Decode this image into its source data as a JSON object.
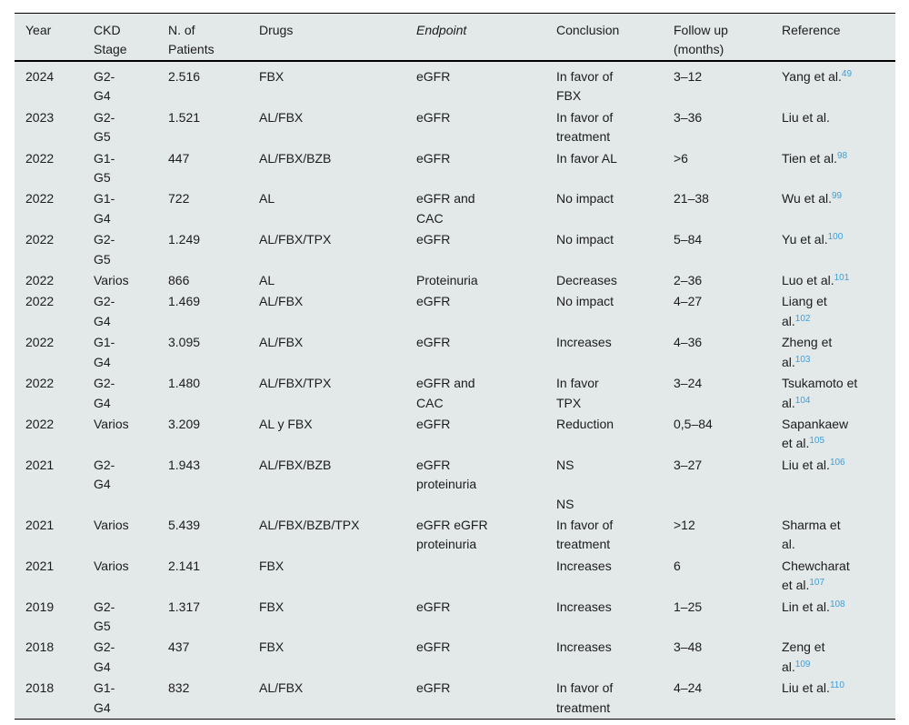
{
  "colors": {
    "table_background": "#e3e8e9",
    "text": "#1c1c1c",
    "border": "#000000",
    "accent_link": "#3ca0d8"
  },
  "table": {
    "columns": [
      {
        "key": "year",
        "label": "Year",
        "italic": false
      },
      {
        "key": "ckd_stage",
        "label": "CKD\nStage",
        "italic": false
      },
      {
        "key": "n_patients",
        "label": "N. of\nPatients",
        "italic": false
      },
      {
        "key": "drugs",
        "label": "Drugs",
        "italic": false
      },
      {
        "key": "endpoint",
        "label": "Endpoint",
        "italic": true
      },
      {
        "key": "conclusion",
        "label": "Conclusion",
        "italic": false
      },
      {
        "key": "follow_up",
        "label": "Follow up\n(months)",
        "italic": false
      },
      {
        "key": "reference",
        "label": "Reference",
        "italic": false
      }
    ],
    "rows": [
      {
        "year": "2024",
        "ckd_stage": "G2-\nG4",
        "n_patients": "2.516",
        "drugs": "FBX",
        "endpoint": "eGFR",
        "conclusion": "In favor of\nFBX",
        "follow_up": "3–12",
        "reference": {
          "text": "Yang et al.",
          "sup": "49"
        }
      },
      {
        "year": "2023",
        "ckd_stage": "G2-\nG5",
        "n_patients": "1.521",
        "drugs": "AL/FBX",
        "endpoint": "eGFR",
        "conclusion": "In favor of\ntreatment",
        "follow_up": "3–36",
        "reference": {
          "text": "Liu et al.",
          "sup": ""
        }
      },
      {
        "year": "2022",
        "ckd_stage": "G1-\nG5",
        "n_patients": "447",
        "drugs": "AL/FBX/BZB",
        "endpoint": "eGFR",
        "conclusion": "In favor AL",
        "follow_up": ">6",
        "reference": {
          "text": "Tien et al.",
          "sup": "98"
        }
      },
      {
        "year": "2022",
        "ckd_stage": "G1-\nG4",
        "n_patients": "722",
        "drugs": "AL",
        "endpoint": "eGFR and\nCAC",
        "conclusion": "No impact",
        "follow_up": "21–38",
        "reference": {
          "text": "Wu et al.",
          "sup": "99"
        }
      },
      {
        "year": "2022",
        "ckd_stage": "G2-\nG5",
        "n_patients": "1.249",
        "drugs": "AL/FBX/TPX",
        "endpoint": "eGFR",
        "conclusion": "No impact",
        "follow_up": "5–84",
        "reference": {
          "text": "Yu et al.",
          "sup": "100"
        }
      },
      {
        "year": "2022",
        "ckd_stage": "Varios",
        "n_patients": "866",
        "drugs": "AL",
        "endpoint": "Proteinuria",
        "conclusion": "Decreases",
        "follow_up": "2–36",
        "reference": {
          "text": "Luo et al.",
          "sup": "101"
        }
      },
      {
        "year": "2022",
        "ckd_stage": "G2-\nG4",
        "n_patients": "1.469",
        "drugs": "AL/FBX",
        "endpoint": "eGFR",
        "conclusion": "No impact",
        "follow_up": "4–27",
        "reference": {
          "text": "Liang et\nal.",
          "sup": "102"
        }
      },
      {
        "year": "2022",
        "ckd_stage": "G1-\nG4",
        "n_patients": "3.095",
        "drugs": "AL/FBX",
        "endpoint": "eGFR",
        "conclusion": "Increases",
        "follow_up": "4–36",
        "reference": {
          "text": "Zheng et\nal.",
          "sup": "103"
        }
      },
      {
        "year": "2022",
        "ckd_stage": "G2-\nG4",
        "n_patients": "1.480",
        "drugs": "AL/FBX/TPX",
        "endpoint": "eGFR and\nCAC",
        "conclusion": "In favor\nTPX",
        "follow_up": "3–24",
        "reference": {
          "text": "Tsukamoto et\nal.",
          "sup": "104"
        }
      },
      {
        "year": "2022",
        "ckd_stage": "Varios",
        "n_patients": "3.209",
        "drugs": "AL y FBX",
        "endpoint": "eGFR",
        "conclusion": "Reduction",
        "follow_up": "0,5–84",
        "reference": {
          "text": "Sapankaew\net al.",
          "sup": "105"
        }
      },
      {
        "year": "2021",
        "ckd_stage": "G2-\nG4",
        "n_patients": "1.943",
        "drugs": "AL/FBX/BZB",
        "endpoint": "eGFR\nproteinuria",
        "conclusion": "NS\n\nNS",
        "follow_up": "3–27",
        "reference": {
          "text": "Liu et al.",
          "sup": "106"
        }
      },
      {
        "year": "2021",
        "ckd_stage": "Varios",
        "n_patients": "5.439",
        "drugs": "AL/FBX/BZB/TPX",
        "endpoint": "eGFR eGFR\nproteinuria",
        "conclusion": "In favor of\ntreatment",
        "follow_up": ">12",
        "reference": {
          "text": "Sharma et\nal.",
          "sup": ""
        }
      },
      {
        "year": "2021",
        "ckd_stage": "Varios",
        "n_patients": "2.141",
        "drugs": "FBX",
        "endpoint": "",
        "conclusion": "Increases",
        "follow_up": "6",
        "reference": {
          "text": "Chewcharat\net al.",
          "sup": "107"
        }
      },
      {
        "year": "2019",
        "ckd_stage": "G2-\nG5",
        "n_patients": "1.317",
        "drugs": "FBX",
        "endpoint": "eGFR",
        "conclusion": "Increases",
        "follow_up": "1–25",
        "reference": {
          "text": "Lin et al.",
          "sup": "108"
        }
      },
      {
        "year": "2018",
        "ckd_stage": "G2-\nG4",
        "n_patients": "437",
        "drugs": "FBX",
        "endpoint": "eGFR",
        "conclusion": "Increases",
        "follow_up": "3–48",
        "reference": {
          "text": "Zeng et\nal.",
          "sup": "109"
        }
      },
      {
        "year": "2018",
        "ckd_stage": "G1-\nG4",
        "n_patients": "832",
        "drugs": "AL/FBX",
        "endpoint": "eGFR",
        "conclusion": "In favor of\ntreatment",
        "follow_up": "4–24",
        "reference": {
          "text": "Liu et al.",
          "sup": "110"
        }
      }
    ]
  }
}
